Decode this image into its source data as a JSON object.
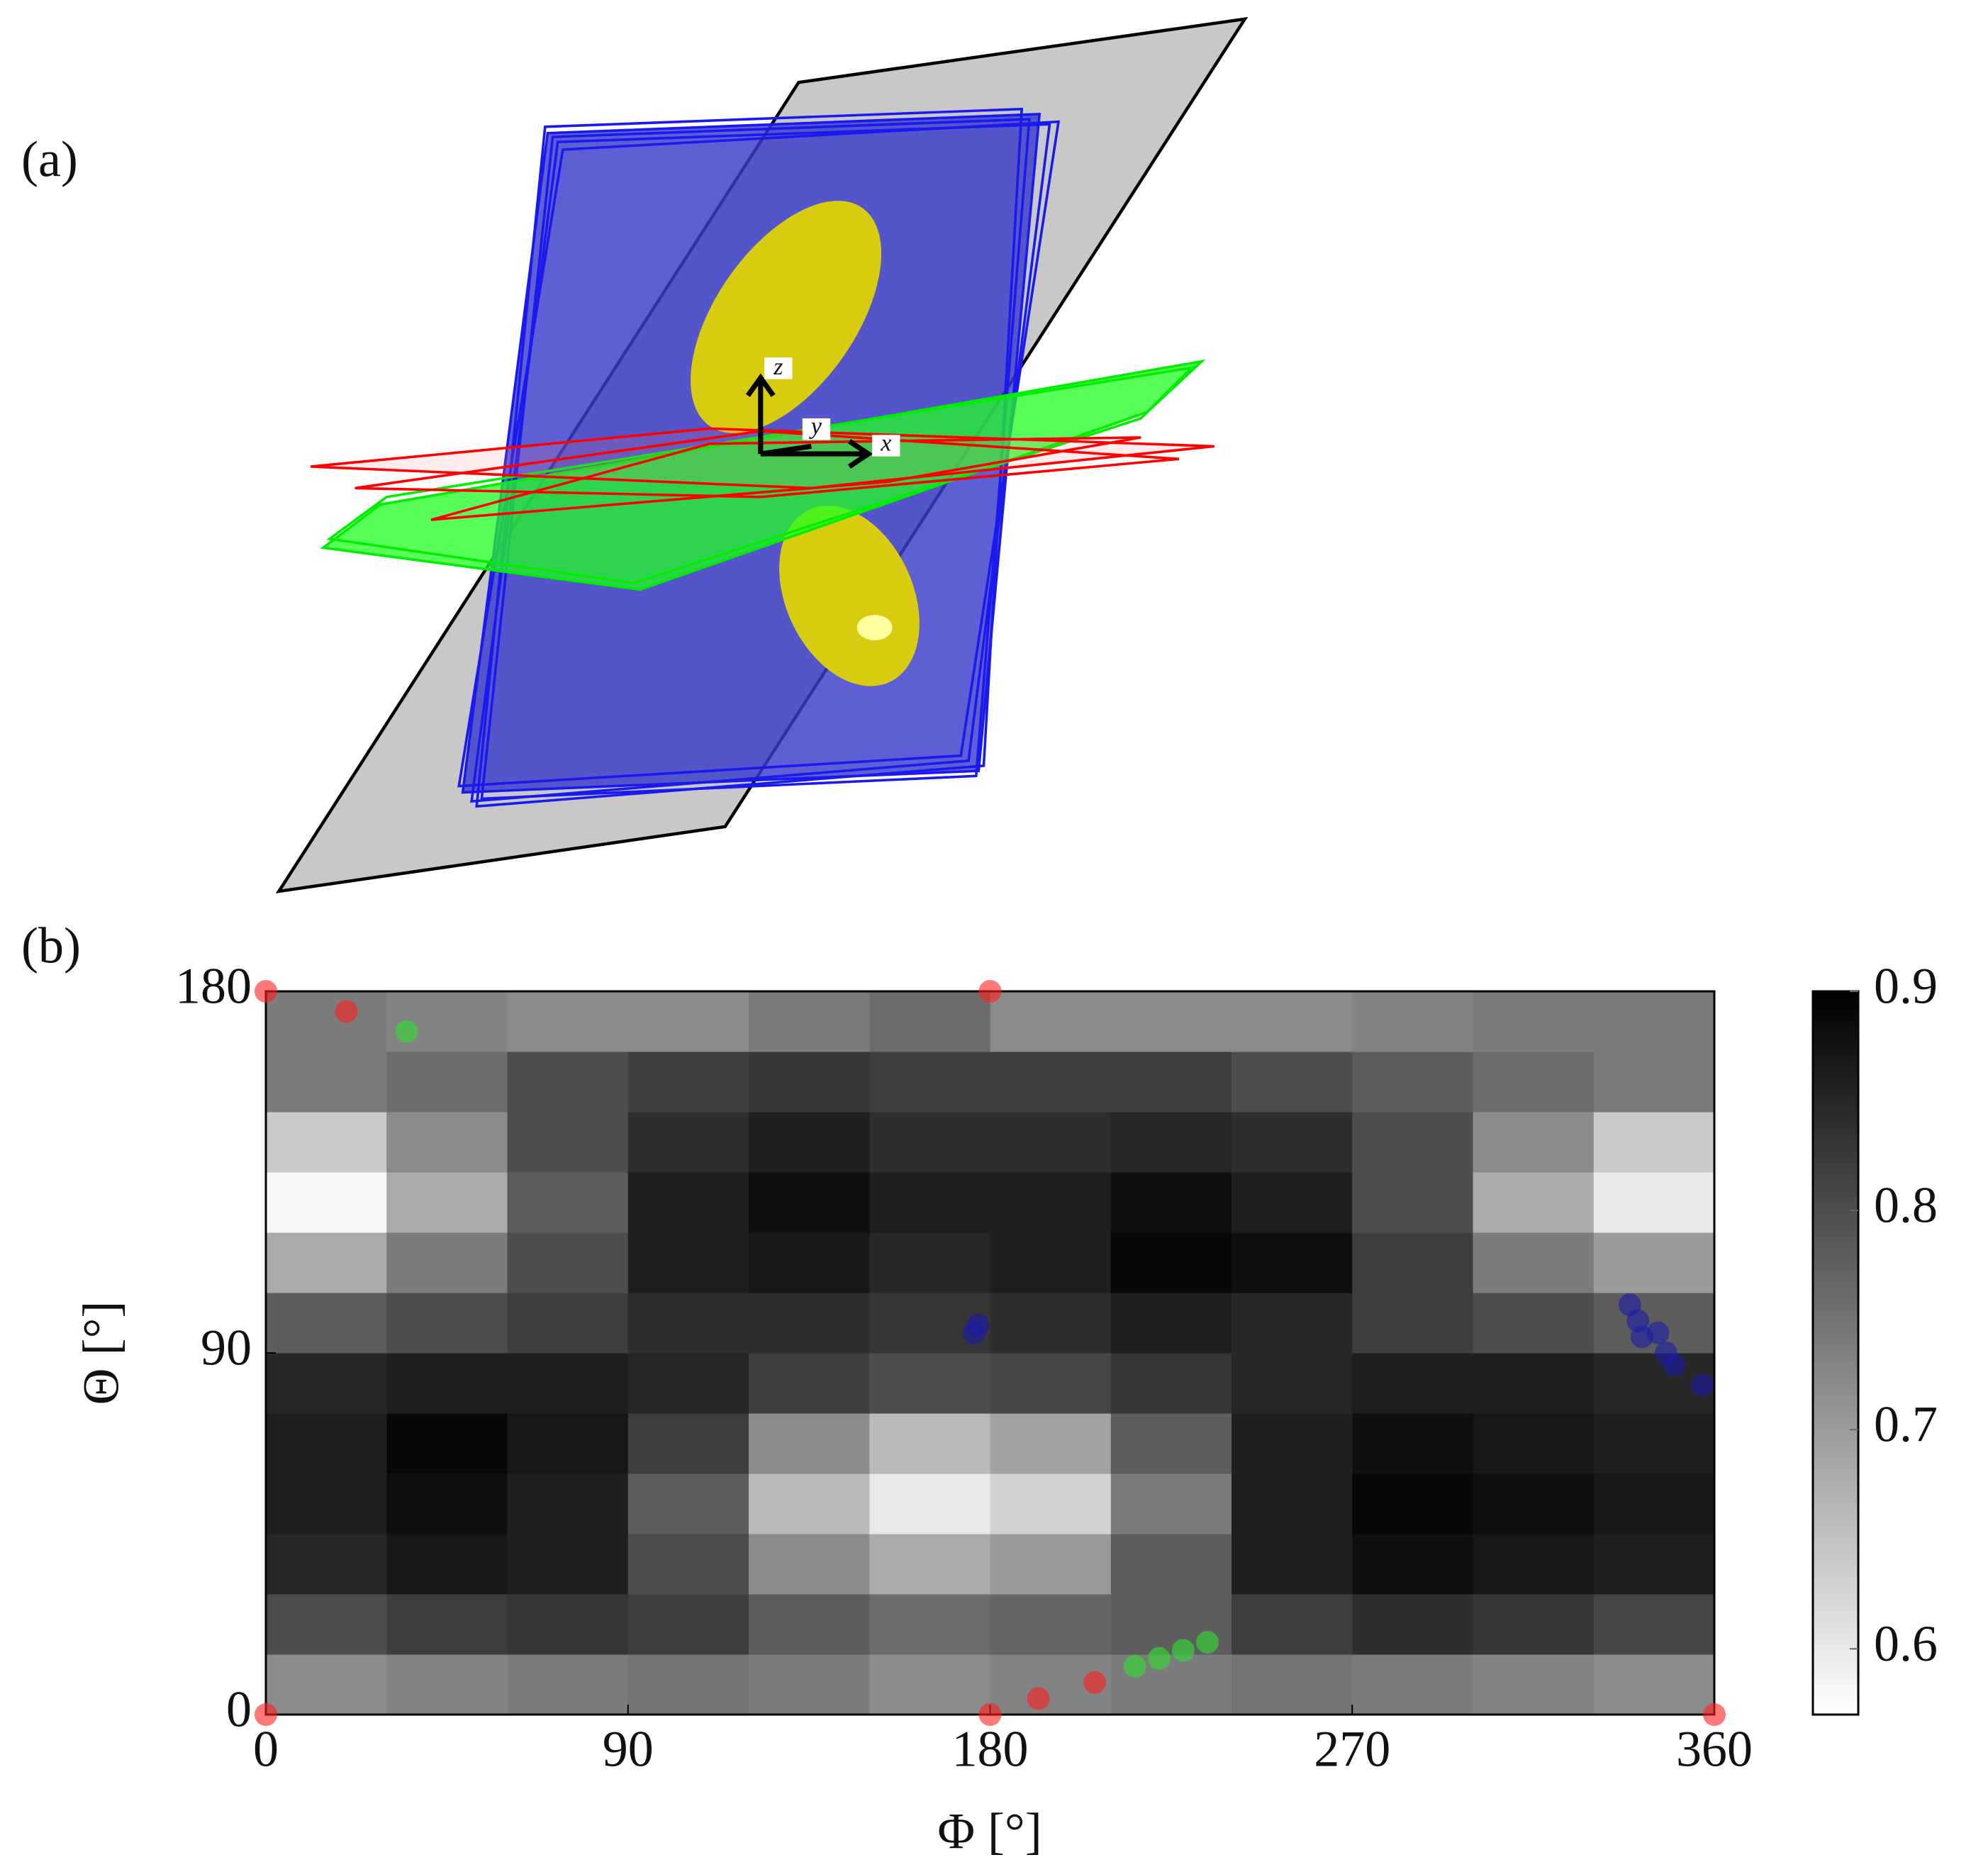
{
  "panel_a": {
    "label": "(a)",
    "axes": [
      "x",
      "y",
      "z"
    ]
  },
  "chart_data": {
    "type": "heatmap",
    "label": "(b)",
    "xlabel": "Φ [°]",
    "ylabel": "Θ [°]",
    "xlim": [
      0,
      360
    ],
    "ylim": [
      0,
      180
    ],
    "xticks": [
      0,
      90,
      180,
      270,
      360
    ],
    "yticks": [
      0,
      90,
      180
    ],
    "xbins": [
      0,
      30,
      60,
      90,
      120,
      150,
      180,
      210,
      240,
      270,
      300,
      330,
      360
    ],
    "ybins": [
      0,
      15,
      30,
      45,
      60,
      75,
      90,
      105,
      120,
      135,
      150,
      165,
      180
    ],
    "z": [
      [
        0.72,
        0.73,
        0.74,
        0.75,
        0.74,
        0.72,
        0.73,
        0.74,
        0.75,
        0.74,
        0.73,
        0.72
      ],
      [
        0.8,
        0.82,
        0.83,
        0.82,
        0.78,
        0.76,
        0.77,
        0.78,
        0.82,
        0.84,
        0.83,
        0.81
      ],
      [
        0.85,
        0.87,
        0.86,
        0.8,
        0.72,
        0.68,
        0.7,
        0.78,
        0.86,
        0.88,
        0.87,
        0.86
      ],
      [
        0.86,
        0.88,
        0.86,
        0.78,
        0.66,
        0.6,
        0.63,
        0.74,
        0.86,
        0.89,
        0.88,
        0.87
      ],
      [
        0.86,
        0.89,
        0.87,
        0.82,
        0.72,
        0.66,
        0.69,
        0.78,
        0.86,
        0.88,
        0.87,
        0.86
      ],
      [
        0.85,
        0.86,
        0.86,
        0.85,
        0.82,
        0.8,
        0.81,
        0.83,
        0.85,
        0.86,
        0.86,
        0.85
      ],
      [
        0.78,
        0.8,
        0.82,
        0.84,
        0.84,
        0.83,
        0.84,
        0.86,
        0.85,
        0.82,
        0.8,
        0.78
      ],
      [
        0.68,
        0.74,
        0.8,
        0.86,
        0.87,
        0.85,
        0.86,
        0.89,
        0.88,
        0.82,
        0.74,
        0.7
      ],
      [
        0.58,
        0.68,
        0.78,
        0.86,
        0.88,
        0.86,
        0.86,
        0.88,
        0.86,
        0.8,
        0.68,
        0.6
      ],
      [
        0.64,
        0.72,
        0.8,
        0.84,
        0.86,
        0.84,
        0.84,
        0.85,
        0.84,
        0.8,
        0.72,
        0.64
      ],
      [
        0.74,
        0.76,
        0.8,
        0.82,
        0.83,
        0.82,
        0.82,
        0.82,
        0.8,
        0.78,
        0.76,
        0.74
      ],
      [
        0.74,
        0.73,
        0.72,
        0.72,
        0.74,
        0.76,
        0.72,
        0.72,
        0.72,
        0.73,
        0.74,
        0.74
      ]
    ],
    "clim": [
      0.57,
      0.9
    ],
    "cticks": [
      0.6,
      0.7,
      0.8,
      0.9
    ],
    "colormap": "white-to-black",
    "series": [
      {
        "color": "#ff2020",
        "x": [
          0,
          20,
          180,
          0,
          180,
          192,
          206,
          360
        ],
        "y": [
          180,
          175,
          180,
          0,
          0,
          4,
          8,
          0
        ]
      },
      {
        "color": "#30e030",
        "x": [
          35,
          216,
          222,
          228,
          234
        ],
        "y": [
          170,
          12,
          14,
          16,
          18
        ]
      },
      {
        "color": "#1a1aa8",
        "x": [
          176,
          177,
          339,
          341,
          342,
          346,
          348,
          350,
          357
        ],
        "y": [
          95,
          97,
          102,
          98,
          94,
          95,
          90,
          87,
          82
        ]
      }
    ]
  }
}
